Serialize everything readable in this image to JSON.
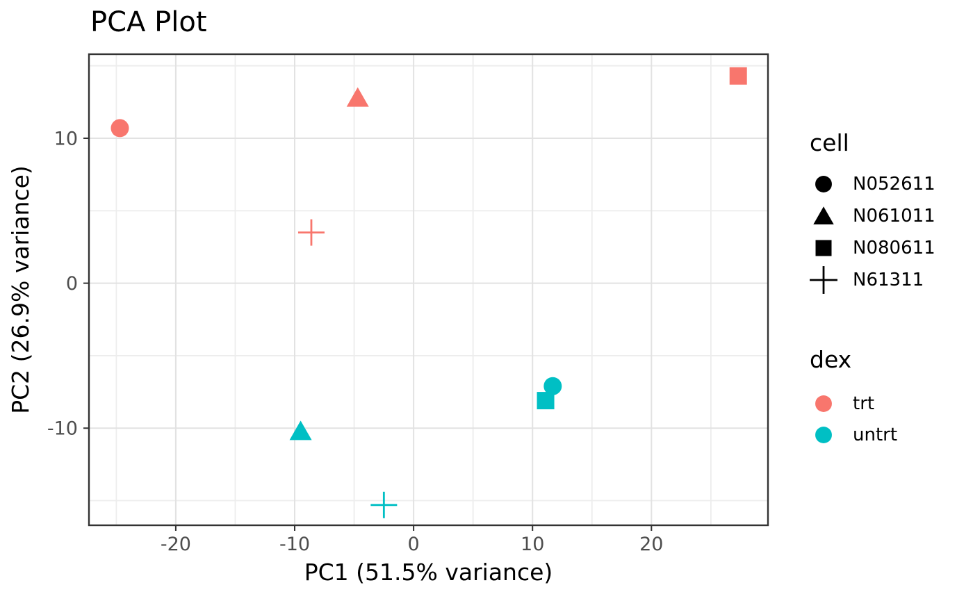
{
  "title": "PCA Plot",
  "chart_data": {
    "type": "scatter",
    "title": "PCA Plot",
    "xlabel": "PC1 (51.5% variance)",
    "ylabel": "PC2 (26.9% variance)",
    "xlim": [
      -27.3,
      29.8
    ],
    "ylim": [
      -16.7,
      15.8
    ],
    "x_major_ticks": [
      -20,
      -10,
      0,
      10,
      20
    ],
    "x_minor_ticks": [
      -25,
      -15,
      -5,
      5,
      15,
      25
    ],
    "y_major_ticks": [
      -10,
      0,
      10
    ],
    "y_minor_ticks": [
      -15,
      -5,
      5,
      15
    ],
    "grid": true,
    "legend_position": "right",
    "shape_by": "cell",
    "color_by": "dex",
    "colors": {
      "trt": "#F8766D",
      "untrt": "#00BFC4"
    },
    "points": [
      {
        "cell": "N052611",
        "dex": "trt",
        "shape": "circle",
        "x": -24.7,
        "y": 10.7
      },
      {
        "cell": "N061011",
        "dex": "trt",
        "shape": "triangle",
        "x": -4.7,
        "y": 12.8
      },
      {
        "cell": "N080611",
        "dex": "trt",
        "shape": "square",
        "x": 27.3,
        "y": 14.3
      },
      {
        "cell": "N61311",
        "dex": "trt",
        "shape": "plus",
        "x": -8.6,
        "y": 3.5
      },
      {
        "cell": "N080611",
        "dex": "untrt",
        "shape": "square",
        "x": 11.1,
        "y": -8.1
      },
      {
        "cell": "N052611",
        "dex": "untrt",
        "shape": "circle",
        "x": 11.7,
        "y": -7.1
      },
      {
        "cell": "N061011",
        "dex": "untrt",
        "shape": "triangle",
        "x": -9.5,
        "y": -10.2
      },
      {
        "cell": "N61311",
        "dex": "untrt",
        "shape": "plus",
        "x": -2.5,
        "y": -15.3
      }
    ]
  },
  "legend": {
    "cell": {
      "title": "cell",
      "items": [
        {
          "label": "N052611",
          "shape": "circle"
        },
        {
          "label": "N061011",
          "shape": "triangle"
        },
        {
          "label": "N080611",
          "shape": "square"
        },
        {
          "label": "N61311",
          "shape": "plus"
        }
      ]
    },
    "dex": {
      "title": "dex",
      "items": [
        {
          "label": "trt",
          "color": "#F8766D"
        },
        {
          "label": "untrt",
          "color": "#00BFC4"
        }
      ]
    }
  },
  "style": {
    "panel_border_color": "#333333",
    "major_grid_color": "#E2E2E2",
    "minor_grid_color": "#EDEDED",
    "tick_color": "#333333",
    "tick_label_color": "#4D4D4D",
    "legend_glyph_color": "#000000"
  }
}
